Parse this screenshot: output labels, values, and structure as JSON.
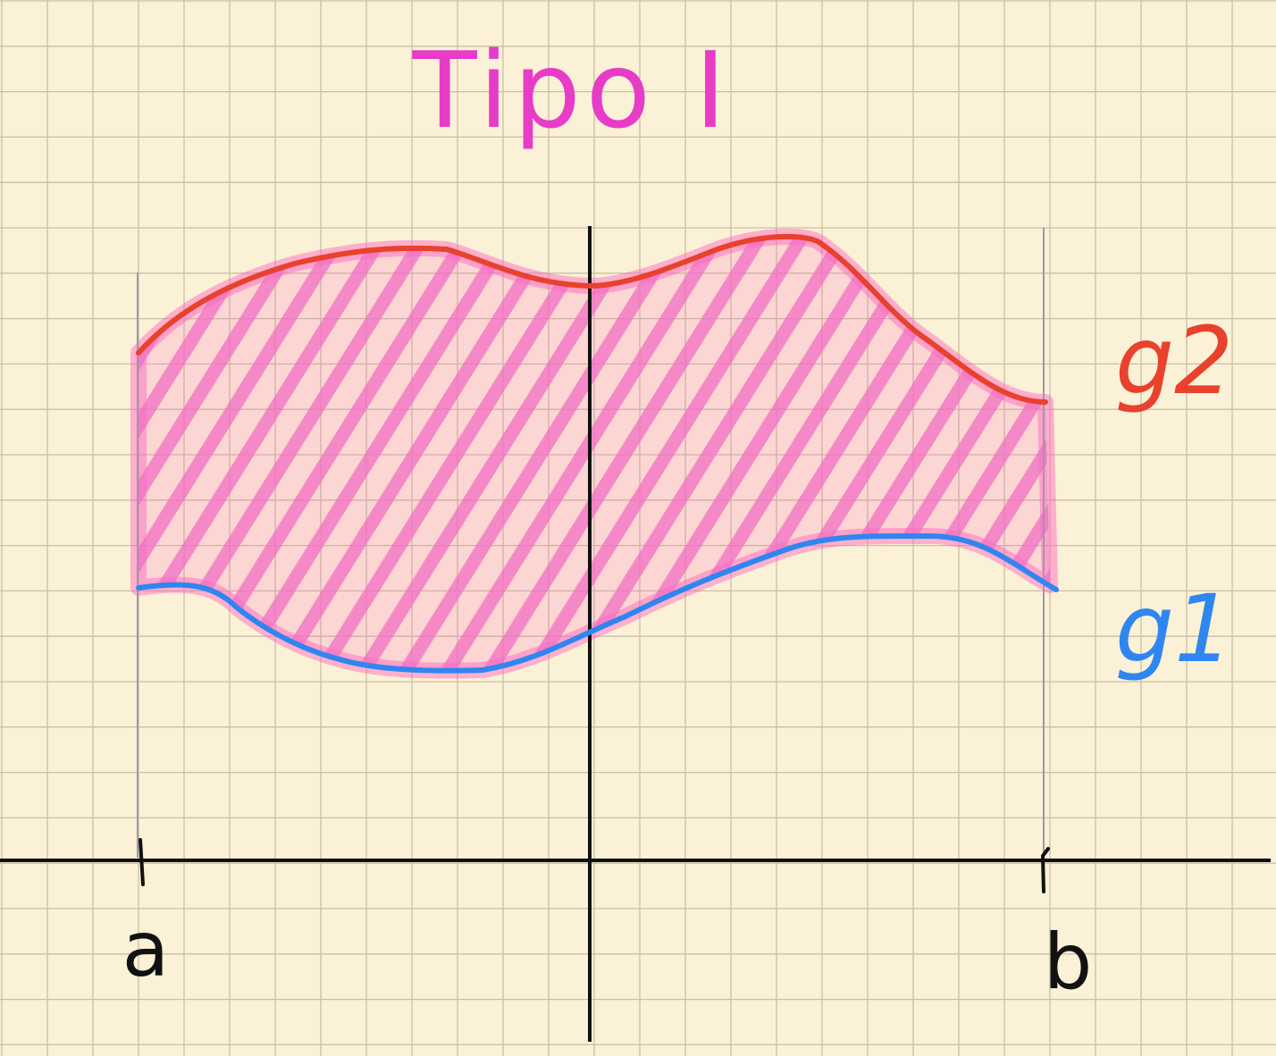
{
  "title": "Tipo I",
  "labels": {
    "upper_curve": "g2",
    "lower_curve": "g1",
    "left_bound": "a",
    "right_bound": "b"
  },
  "colors": {
    "background": "#fbf1d6",
    "grid": "#c9c0a6",
    "axis": "#111111",
    "title": "#e63cc8",
    "upper_curve": "#e8412e",
    "lower_curve": "#2f86f0",
    "region_fill": "#ff5fc0",
    "hatch": "#f36dc3",
    "bound_lines": "#9a9aa8"
  }
}
